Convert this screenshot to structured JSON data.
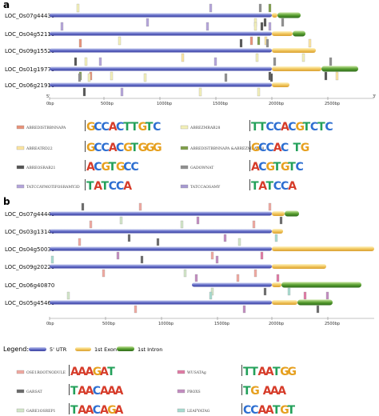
{
  "panel_a": {
    "label": "a",
    "genes": [
      "LOC_Os07g44430",
      "LOC_Os04g52110",
      "LOC_Os09g15520",
      "LOC_Os01g19770",
      "LOC_Os06g21910"
    ],
    "axis": {
      "start": "5'",
      "end": "3'",
      "ticks": [
        "0bp",
        "500bp",
        "1000bp",
        "1500bp",
        "2000bp",
        "2500bp"
      ]
    },
    "motifs": [
      {
        "name": "ABREDISTBBNNAPA",
        "color": "#e8937a",
        "logo": "GCCACTTGTC"
      },
      {
        "name": "ABREZMRAB28",
        "color": "#f3f0b8",
        "logo": "TTCCACGTCTC"
      },
      {
        "name": "ABREATRD22",
        "color": "#fde5a0",
        "logo": "GCCACGTGGG"
      },
      {
        "name": "ABREDISTBBNNAPA &ABREZMRAB28",
        "color": "#7f9f4a",
        "logo": "GCCAC TG"
      },
      {
        "name": "ABREOSRAB21",
        "color": "#555555",
        "logo": "ACGTGCC"
      },
      {
        "name": "GADOWNAT",
        "color": "#8f8f8f",
        "logo": "ACGTGTC"
      },
      {
        "name": "TATCCAYMOTIFOSRAMY3D",
        "color": "#b4a4da",
        "logo": "TATCCA"
      },
      {
        "name": "TATCCAOSAMY",
        "color": "#a79ad0",
        "logo": "TATCCA"
      }
    ]
  },
  "panel_b": {
    "label": "b",
    "genes": [
      "LOC_Os07g44440",
      "LOC_Os03g13140",
      "LOC_Os04g50030",
      "LOC_Os09g20220",
      "LOC_Os06g40870",
      "LOC_Os05g45460"
    ],
    "axis": {
      "start": "",
      "end": "",
      "ticks": [
        "0bp",
        "500bp",
        "1000bp",
        "1500bp",
        "2000bp",
        "2500bp"
      ]
    },
    "legend": {
      "title": "Legend:",
      "items": [
        "5' UTR",
        "1st Exon",
        "1st Intron"
      ]
    },
    "motifs": [
      {
        "name": "OSE1ROOTNODULE",
        "color": "#f0a8a0",
        "logo": "AAAGAT"
      },
      {
        "name": "WUSATAg",
        "color": "#e07aa4",
        "logo": "TTAATGG"
      },
      {
        "name": "GARSAT",
        "color": "#6a6a6a",
        "logo": "TAACAAA"
      },
      {
        "name": "PBOXS",
        "color": "#c28cc0",
        "logo": "TG AAA"
      },
      {
        "name": "GARE1OSREP1",
        "color": "#d2e6c8",
        "logo": "TAACAGA"
      },
      {
        "name": "LEAFYATAG",
        "color": "#a8dcd0",
        "logo": "CCAATGT"
      }
    ]
  }
}
